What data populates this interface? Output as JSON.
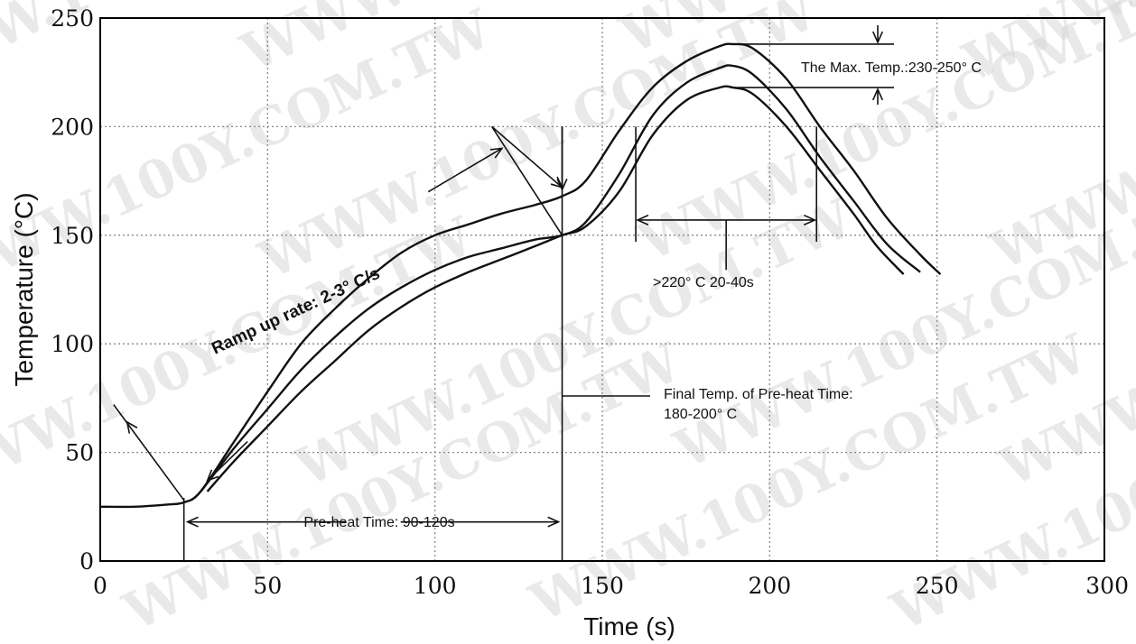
{
  "chart_data": {
    "type": "line",
    "title": "",
    "xlabel": "Time (s)",
    "ylabel": "Temperature (°C)",
    "xlim": [
      0,
      300
    ],
    "ylim": [
      0,
      250
    ],
    "x_ticks": [
      0,
      50,
      100,
      150,
      200,
      250,
      300
    ],
    "y_ticks": [
      0,
      50,
      100,
      150,
      200,
      250
    ],
    "grid": true,
    "series": [
      {
        "name": "",
        "x": [
          0,
          10,
          20,
          25,
          30,
          40,
          50,
          60,
          70,
          80,
          90,
          100,
          110,
          120,
          130,
          138,
          145,
          155,
          165,
          175,
          185,
          189,
          195,
          205,
          215,
          225,
          235,
          245,
          251
        ],
        "y": [
          25,
          25,
          26,
          27,
          32,
          55,
          78,
          100,
          116,
          130,
          142,
          150,
          155,
          160,
          164,
          168,
          175,
          198,
          218,
          230,
          237,
          238,
          236,
          222,
          200,
          180,
          158,
          141,
          132
        ]
      },
      {
        "name": "",
        "x": [
          27,
          30,
          40,
          50,
          60,
          70,
          80,
          90,
          100,
          110,
          120,
          130,
          138,
          145,
          155,
          165,
          175,
          185,
          189,
          195,
          205,
          215,
          225,
          235,
          245
        ],
        "y": [
          28,
          32,
          52,
          70,
          88,
          103,
          116,
          126,
          134,
          140,
          144,
          148,
          150,
          156,
          178,
          205,
          220,
          227,
          228,
          224,
          208,
          186,
          166,
          146,
          133
        ]
      },
      {
        "name": "",
        "x": [
          32,
          40,
          50,
          60,
          70,
          80,
          90,
          100,
          110,
          120,
          130,
          138,
          145,
          155,
          165,
          175,
          185,
          189,
          195,
          205,
          215,
          225,
          232,
          240
        ],
        "y": [
          32,
          46,
          62,
          78,
          92,
          106,
          117,
          126,
          133,
          139,
          145,
          150,
          154,
          170,
          196,
          212,
          218,
          218,
          215,
          200,
          180,
          160,
          145,
          132
        ]
      }
    ],
    "annotations": {
      "ramp_up": "Ramp up rate: 2-3° C/s",
      "max_temp": "The Max. Temp.:230-250° C",
      "above_220": ">220° C 20-40s",
      "final_temp_line1": "Final Temp. of Pre-heat Time:",
      "final_temp_line2": "180-200° C",
      "preheat": "Pre-heat Time: 90-120s"
    },
    "watermark": "WWW.100Y.COM.TW"
  }
}
